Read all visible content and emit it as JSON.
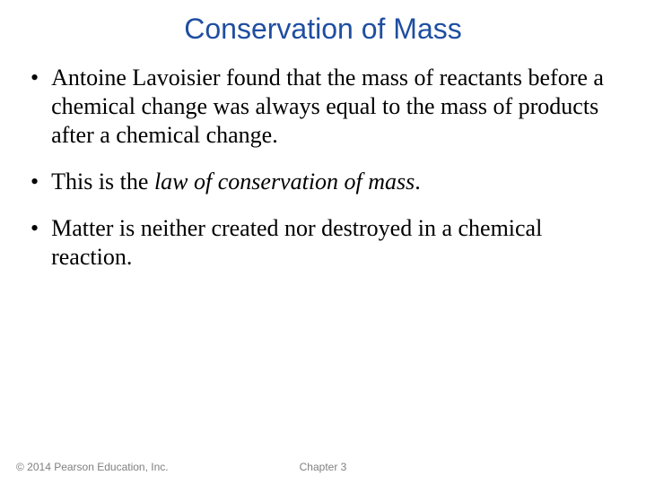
{
  "title": "Conservation of Mass",
  "bullets": [
    {
      "text": "Antoine Lavoisier found that the mass of reactants before a chemical change was always equal to the mass of products after a chemical change."
    },
    {
      "prefix": "This is the ",
      "italic": "law of conservation of mass",
      "suffix": "."
    },
    {
      "text": "Matter is neither created nor destroyed in a chemical reaction."
    }
  ],
  "footer": {
    "copyright": "© 2014 Pearson Education, Inc.",
    "chapter": "Chapter 3"
  },
  "colors": {
    "title": "#1f4ea1",
    "body_text": "#000000",
    "footer_text": "#808080",
    "background": "#ffffff"
  },
  "typography": {
    "title_font": "Arial",
    "title_size_pt": 24,
    "body_font": "Times New Roman",
    "body_size_pt": 20,
    "footer_font": "Arial",
    "footer_size_pt": 9
  }
}
